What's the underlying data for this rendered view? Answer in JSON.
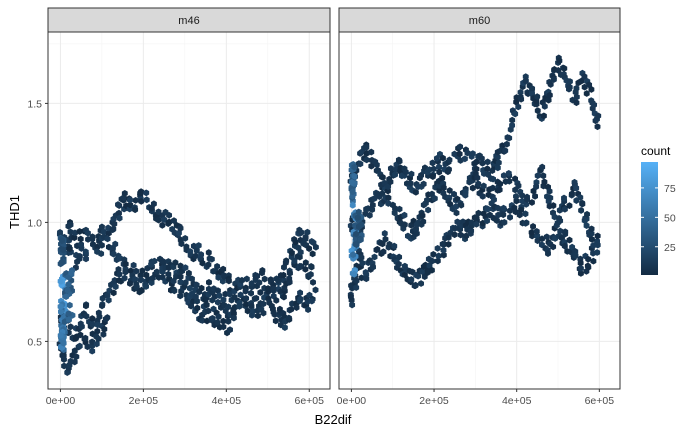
{
  "chart_data": {
    "type": "heatmap",
    "subtype": "hexbin",
    "xlabel": "B22dif",
    "ylabel": "THD1",
    "xlim": [
      -30000,
      650000
    ],
    "ylim": [
      0.3,
      1.8
    ],
    "x_ticks": [
      0,
      200000,
      400000,
      600000
    ],
    "x_tick_labels": [
      "0e+00",
      "2e+05",
      "4e+05",
      "6e+05"
    ],
    "y_ticks": [
      0.5,
      1.0,
      1.5
    ],
    "y_tick_labels": [
      "0.5",
      "1.0",
      "1.5"
    ],
    "grid": true,
    "facets": [
      "m46",
      "m60"
    ],
    "legend": {
      "title": "count",
      "position": "right",
      "breaks": [
        25,
        50,
        75
      ],
      "break_labels": [
        "25",
        "50",
        "75"
      ],
      "range": [
        1,
        97
      ],
      "low_color": "#132B43",
      "high_color": "#56B1F7"
    },
    "panels": [
      {
        "facet": "m46",
        "tracks": [
          {
            "name": "lower",
            "pts": [
              [
                0,
                0.6
              ],
              [
                20000,
                0.56
              ],
              [
                40000,
                0.52
              ],
              [
                60000,
                0.62
              ],
              [
                80000,
                0.55
              ],
              [
                100000,
                0.66
              ],
              [
                120000,
                0.7
              ],
              [
                140000,
                0.78
              ],
              [
                160000,
                0.8
              ],
              [
                180000,
                0.74
              ],
              [
                200000,
                0.72
              ],
              [
                220000,
                0.78
              ],
              [
                240000,
                0.8
              ],
              [
                260000,
                0.76
              ],
              [
                280000,
                0.72
              ],
              [
                300000,
                0.72
              ],
              [
                320000,
                0.66
              ],
              [
                340000,
                0.62
              ],
              [
                360000,
                0.62
              ],
              [
                380000,
                0.58
              ],
              [
                400000,
                0.56
              ],
              [
                420000,
                0.62
              ],
              [
                440000,
                0.66
              ],
              [
                460000,
                0.64
              ],
              [
                480000,
                0.62
              ],
              [
                500000,
                0.68
              ],
              [
                520000,
                0.62
              ],
              [
                540000,
                0.58
              ],
              [
                560000,
                0.64
              ],
              [
                580000,
                0.68
              ],
              [
                600000,
                0.66
              ],
              [
                620000,
                0.7
              ]
            ]
          },
          {
            "name": "middle",
            "pts": [
              [
                0,
                0.95
              ],
              [
                20000,
                0.9
              ],
              [
                40000,
                0.82
              ],
              [
                60000,
                0.88
              ],
              [
                80000,
                0.92
              ],
              [
                100000,
                0.95
              ],
              [
                120000,
                0.92
              ],
              [
                140000,
                0.85
              ],
              [
                160000,
                0.82
              ],
              [
                180000,
                0.78
              ],
              [
                200000,
                0.76
              ],
              [
                220000,
                0.8
              ],
              [
                240000,
                0.84
              ],
              [
                260000,
                0.82
              ],
              [
                280000,
                0.8
              ],
              [
                300000,
                0.78
              ],
              [
                320000,
                0.72
              ],
              [
                340000,
                0.7
              ],
              [
                360000,
                0.72
              ],
              [
                380000,
                0.68
              ],
              [
                400000,
                0.66
              ],
              [
                420000,
                0.72
              ],
              [
                440000,
                0.7
              ],
              [
                460000,
                0.68
              ],
              [
                480000,
                0.66
              ],
              [
                500000,
                0.72
              ],
              [
                520000,
                0.74
              ],
              [
                540000,
                0.72
              ],
              [
                560000,
                0.8
              ],
              [
                580000,
                0.84
              ],
              [
                600000,
                0.8
              ],
              [
                620000,
                0.74
              ]
            ]
          },
          {
            "name": "upper",
            "pts": [
              [
                20000,
                0.98
              ],
              [
                40000,
                0.92
              ],
              [
                60000,
                0.95
              ],
              [
                80000,
                0.92
              ],
              [
                100000,
                0.9
              ],
              [
                120000,
                0.96
              ],
              [
                140000,
                1.04
              ],
              [
                160000,
                1.1
              ],
              [
                180000,
                1.06
              ],
              [
                200000,
                1.12
              ],
              [
                220000,
                1.08
              ],
              [
                240000,
                1.02
              ],
              [
                260000,
                1.0
              ],
              [
                280000,
                0.98
              ],
              [
                300000,
                0.92
              ],
              [
                320000,
                0.88
              ],
              [
                340000,
                0.86
              ],
              [
                360000,
                0.84
              ],
              [
                380000,
                0.8
              ],
              [
                400000,
                0.78
              ],
              [
                420000,
                0.72
              ],
              [
                440000,
                0.75
              ],
              [
                460000,
                0.72
              ],
              [
                480000,
                0.78
              ],
              [
                500000,
                0.74
              ],
              [
                520000,
                0.7
              ],
              [
                540000,
                0.8
              ],
              [
                560000,
                0.88
              ],
              [
                580000,
                0.95
              ],
              [
                600000,
                0.92
              ],
              [
                620000,
                0.86
              ]
            ]
          },
          {
            "name": "low-early",
            "pts": [
              [
                0,
                0.5
              ],
              [
                10000,
                0.42
              ],
              [
                20000,
                0.38
              ],
              [
                40000,
                0.46
              ],
              [
                60000,
                0.52
              ],
              [
                80000,
                0.48
              ],
              [
                100000,
                0.55
              ],
              [
                120000,
                0.6
              ]
            ]
          }
        ],
        "dense": [
          {
            "x": [
              0,
              12000
            ],
            "y": [
              0.5,
              0.78
            ],
            "count": 90
          },
          {
            "x": [
              0,
              10000
            ],
            "y": [
              0.45,
              0.65
            ],
            "count": 65
          },
          {
            "x": [
              10000,
              30000
            ],
            "y": [
              0.55,
              0.8
            ],
            "count": 45
          },
          {
            "x": [
              0,
              8000
            ],
            "y": [
              0.8,
              0.95
            ],
            "count": 35
          }
        ]
      },
      {
        "facet": "m60",
        "tracks": [
          {
            "name": "lower",
            "pts": [
              [
                0,
                0.72
              ],
              [
                20000,
                0.78
              ],
              [
                40000,
                0.82
              ],
              [
                60000,
                0.86
              ],
              [
                80000,
                0.92
              ],
              [
                100000,
                0.88
              ],
              [
                120000,
                0.82
              ],
              [
                140000,
                0.78
              ],
              [
                160000,
                0.76
              ],
              [
                180000,
                0.8
              ],
              [
                200000,
                0.84
              ],
              [
                220000,
                0.88
              ],
              [
                240000,
                0.94
              ],
              [
                260000,
                0.98
              ],
              [
                280000,
                0.96
              ],
              [
                300000,
                1.0
              ],
              [
                320000,
                1.02
              ],
              [
                340000,
                1.06
              ],
              [
                360000,
                1.02
              ],
              [
                380000,
                1.04
              ],
              [
                400000,
                1.08
              ],
              [
                420000,
                1.02
              ],
              [
                440000,
                0.96
              ],
              [
                460000,
                0.92
              ],
              [
                480000,
                0.9
              ],
              [
                500000,
                0.98
              ],
              [
                520000,
                0.92
              ],
              [
                540000,
                0.88
              ],
              [
                560000,
                0.8
              ],
              [
                580000,
                0.86
              ],
              [
                600000,
                0.9
              ]
            ]
          },
          {
            "name": "middle",
            "pts": [
              [
                0,
                1.0
              ],
              [
                20000,
                0.96
              ],
              [
                40000,
                1.04
              ],
              [
                60000,
                1.1
              ],
              [
                80000,
                1.12
              ],
              [
                100000,
                1.08
              ],
              [
                120000,
                1.02
              ],
              [
                140000,
                0.96
              ],
              [
                160000,
                0.98
              ],
              [
                180000,
                1.06
              ],
              [
                200000,
                1.12
              ],
              [
                220000,
                1.16
              ],
              [
                240000,
                1.1
              ],
              [
                260000,
                1.06
              ],
              [
                280000,
                1.14
              ],
              [
                300000,
                1.18
              ],
              [
                320000,
                1.12
              ],
              [
                340000,
                1.1
              ],
              [
                360000,
                1.16
              ],
              [
                380000,
                1.2
              ],
              [
                400000,
                1.14
              ],
              [
                420000,
                1.06
              ],
              [
                440000,
                1.12
              ],
              [
                460000,
                1.2
              ],
              [
                480000,
                1.1
              ],
              [
                500000,
                1.02
              ],
              [
                520000,
                1.08
              ],
              [
                540000,
                1.14
              ],
              [
                560000,
                1.06
              ],
              [
                580000,
                0.96
              ],
              [
                600000,
                0.92
              ]
            ]
          },
          {
            "name": "upper",
            "pts": [
              [
                0,
                1.2
              ],
              [
                20000,
                1.26
              ],
              [
                40000,
                1.3
              ],
              [
                60000,
                1.22
              ],
              [
                80000,
                1.16
              ],
              [
                100000,
                1.2
              ],
              [
                120000,
                1.24
              ],
              [
                140000,
                1.18
              ],
              [
                160000,
                1.14
              ],
              [
                180000,
                1.2
              ],
              [
                200000,
                1.22
              ],
              [
                220000,
                1.26
              ],
              [
                240000,
                1.24
              ],
              [
                260000,
                1.28
              ],
              [
                280000,
                1.3
              ],
              [
                300000,
                1.26
              ],
              [
                320000,
                1.24
              ],
              [
                340000,
                1.2
              ],
              [
                360000,
                1.28
              ],
              [
                380000,
                1.34
              ],
              [
                400000,
                1.5
              ],
              [
                420000,
                1.58
              ],
              [
                440000,
                1.54
              ],
              [
                460000,
                1.46
              ],
              [
                480000,
                1.56
              ],
              [
                500000,
                1.66
              ],
              [
                520000,
                1.62
              ],
              [
                540000,
                1.52
              ],
              [
                560000,
                1.6
              ],
              [
                580000,
                1.54
              ],
              [
                600000,
                1.4
              ]
            ]
          },
          {
            "name": "low-early",
            "pts": [
              [
                0,
                0.66
              ],
              [
                10000,
                0.74
              ],
              [
                20000,
                0.86
              ],
              [
                30000,
                0.82
              ],
              [
                40000,
                0.78
              ]
            ]
          }
        ],
        "dense": [
          {
            "x": [
              0,
              12000
            ],
            "y": [
              0.78,
              1.1
            ],
            "count": 80
          },
          {
            "x": [
              0,
              8000
            ],
            "y": [
              1.1,
              1.25
            ],
            "count": 50
          },
          {
            "x": [
              8000,
              25000
            ],
            "y": [
              0.9,
              1.05
            ],
            "count": 38
          }
        ]
      }
    ]
  }
}
